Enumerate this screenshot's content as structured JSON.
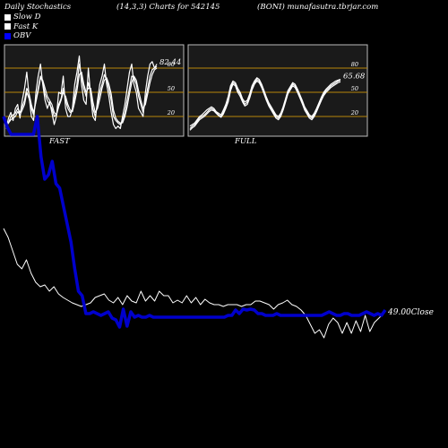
{
  "header": {
    "title": "Daily Stochastics",
    "params": "(14,3,3) Charts for 542145",
    "site": "(BONI) munafasutra.tbrjar.com"
  },
  "legend": [
    {
      "label": "Slow  D",
      "color": "#ffffff"
    },
    {
      "label": "Fast K",
      "color": "#ffffff"
    },
    {
      "label": "OBV",
      "color": "#0000ff"
    }
  ],
  "colors": {
    "background": "#000000",
    "obv": "#0000cc",
    "price": "#ffffff",
    "band": "#b8860b",
    "panel_border": "#bbbbbb"
  },
  "chart_data": [
    {
      "type": "line",
      "title": "FAST",
      "ylim": [
        0,
        100
      ],
      "levels": [
        20,
        50,
        80
      ],
      "tick_labels": [
        "80",
        "50",
        "20"
      ],
      "last_value_label": "82.44",
      "series": [
        {
          "values": [
            10,
            12,
            16,
            18,
            20,
            26,
            22,
            28,
            35,
            50,
            42,
            30,
            22,
            40,
            55,
            70,
            62,
            48,
            40,
            35,
            30,
            20,
            22,
            35,
            42,
            55,
            40,
            30,
            25,
            28,
            45,
            60,
            85,
            70,
            55,
            45,
            62,
            50,
            30,
            20,
            35,
            50,
            60,
            72,
            65,
            55,
            40,
            20,
            15,
            12,
            10,
            15,
            25,
            40,
            55,
            70,
            68,
            60,
            45,
            35,
            25,
            40,
            55,
            70,
            78,
            80,
            82
          ]
        },
        {
          "values": [
            5,
            18,
            25,
            15,
            30,
            35,
            18,
            40,
            55,
            75,
            45,
            20,
            15,
            50,
            70,
            85,
            60,
            40,
            30,
            38,
            25,
            10,
            20,
            50,
            48,
            70,
            30,
            20,
            20,
            30,
            60,
            75,
            95,
            60,
            40,
            35,
            80,
            45,
            20,
            15,
            40,
            60,
            70,
            85,
            60,
            45,
            25,
            10,
            5,
            8,
            5,
            20,
            35,
            55,
            75,
            85,
            60,
            50,
            30,
            25,
            20,
            50,
            70,
            85,
            88,
            80,
            85
          ]
        },
        {
          "values": [
            8,
            12,
            20,
            22,
            24,
            30,
            25,
            32,
            40,
            55,
            48,
            35,
            25,
            38,
            52,
            68,
            65,
            55,
            45,
            40,
            35,
            25,
            22,
            32,
            40,
            50,
            45,
            35,
            28,
            26,
            38,
            52,
            72,
            75,
            60,
            50,
            55,
            55,
            38,
            25,
            30,
            42,
            55,
            65,
            68,
            60,
            48,
            28,
            18,
            14,
            12,
            12,
            20,
            32,
            48,
            62,
            70,
            65,
            52,
            40,
            30,
            35,
            48,
            62,
            72,
            78,
            80
          ]
        }
      ]
    },
    {
      "type": "line",
      "title": "FULL",
      "ylim": [
        0,
        100
      ],
      "levels": [
        20,
        50,
        80
      ],
      "tick_labels": [
        "80",
        "50",
        "20"
      ],
      "last_value_label": "65.68",
      "series": [
        {
          "values": [
            5,
            8,
            10,
            14,
            18,
            20,
            22,
            25,
            28,
            30,
            28,
            25,
            22,
            20,
            25,
            32,
            40,
            55,
            62,
            60,
            52,
            48,
            40,
            35,
            38,
            45,
            55,
            62,
            66,
            64,
            58,
            50,
            42,
            35,
            30,
            25,
            20,
            18,
            22,
            30,
            40,
            50,
            55,
            60,
            58,
            52,
            45,
            38,
            30,
            25,
            20,
            18,
            22,
            28,
            35,
            42,
            48,
            52,
            55,
            58,
            60,
            62,
            64,
            65
          ]
        },
        {
          "values": [
            8,
            10,
            12,
            16,
            20,
            22,
            25,
            28,
            30,
            32,
            30,
            26,
            24,
            22,
            28,
            35,
            45,
            58,
            64,
            62,
            55,
            50,
            42,
            38,
            40,
            48,
            58,
            64,
            68,
            66,
            60,
            52,
            44,
            37,
            32,
            27,
            22,
            20,
            24,
            32,
            42,
            52,
            57,
            62,
            60,
            54,
            47,
            40,
            32,
            27,
            22,
            20,
            24,
            30,
            37,
            44,
            50,
            54,
            57,
            60,
            62,
            64,
            65,
            66
          ]
        },
        {
          "values": [
            3,
            6,
            8,
            12,
            16,
            18,
            20,
            23,
            26,
            28,
            27,
            24,
            21,
            19,
            23,
            30,
            38,
            52,
            60,
            58,
            50,
            45,
            38,
            33,
            35,
            43,
            53,
            60,
            64,
            62,
            56,
            48,
            40,
            33,
            28,
            23,
            18,
            16,
            20,
            28,
            38,
            48,
            53,
            58,
            56,
            50,
            43,
            36,
            28,
            23,
            18,
            16,
            20,
            26,
            33,
            40,
            46,
            50,
            53,
            56,
            58,
            60,
            62,
            63
          ]
        }
      ]
    },
    {
      "type": "line",
      "title": "",
      "last_value_label": "49.00Close",
      "series": [
        {
          "name": "OBV",
          "values": [
            130,
            142,
            150,
            150,
            150,
            150,
            150,
            150,
            150,
            130,
            175,
            200,
            195,
            180,
            205,
            210,
            230,
            250,
            270,
            300,
            325,
            330,
            350,
            350,
            348,
            350,
            352,
            350,
            348,
            355,
            357,
            365,
            345,
            364,
            348,
            354,
            352,
            354,
            354,
            352,
            354,
            354,
            354,
            354,
            354,
            354,
            354,
            354,
            354,
            354,
            354,
            354,
            354,
            354,
            354,
            354,
            354,
            354,
            354,
            354,
            352,
            352,
            346,
            350,
            345,
            346,
            345,
            346,
            350,
            350,
            352,
            352,
            352,
            350,
            352,
            352,
            352,
            352,
            352,
            352,
            352,
            352,
            352,
            352,
            352,
            352,
            350,
            348,
            350,
            352,
            352,
            350,
            350,
            352,
            352,
            352,
            350,
            348,
            350,
            352,
            350,
            352,
            346
          ]
        },
        {
          "values": [
            255,
            265,
            280,
            295,
            300,
            290,
            305,
            315,
            320,
            318,
            325,
            320,
            328,
            332,
            335,
            338,
            340,
            342,
            340,
            338,
            332,
            330,
            328,
            335,
            338,
            332,
            340,
            330,
            336,
            338,
            325,
            336,
            330,
            336,
            325,
            330,
            330,
            338,
            335,
            338,
            330,
            338,
            332,
            340,
            334,
            338,
            340,
            340,
            342,
            340,
            340,
            340,
            342,
            340,
            340,
            336,
            336,
            338,
            340,
            345,
            340,
            338,
            335,
            340,
            342,
            346,
            352,
            362,
            372,
            368,
            377,
            362,
            355,
            360,
            372,
            360,
            372,
            358,
            370,
            352,
            370,
            360,
            355,
            350
          ]
        }
      ]
    }
  ]
}
